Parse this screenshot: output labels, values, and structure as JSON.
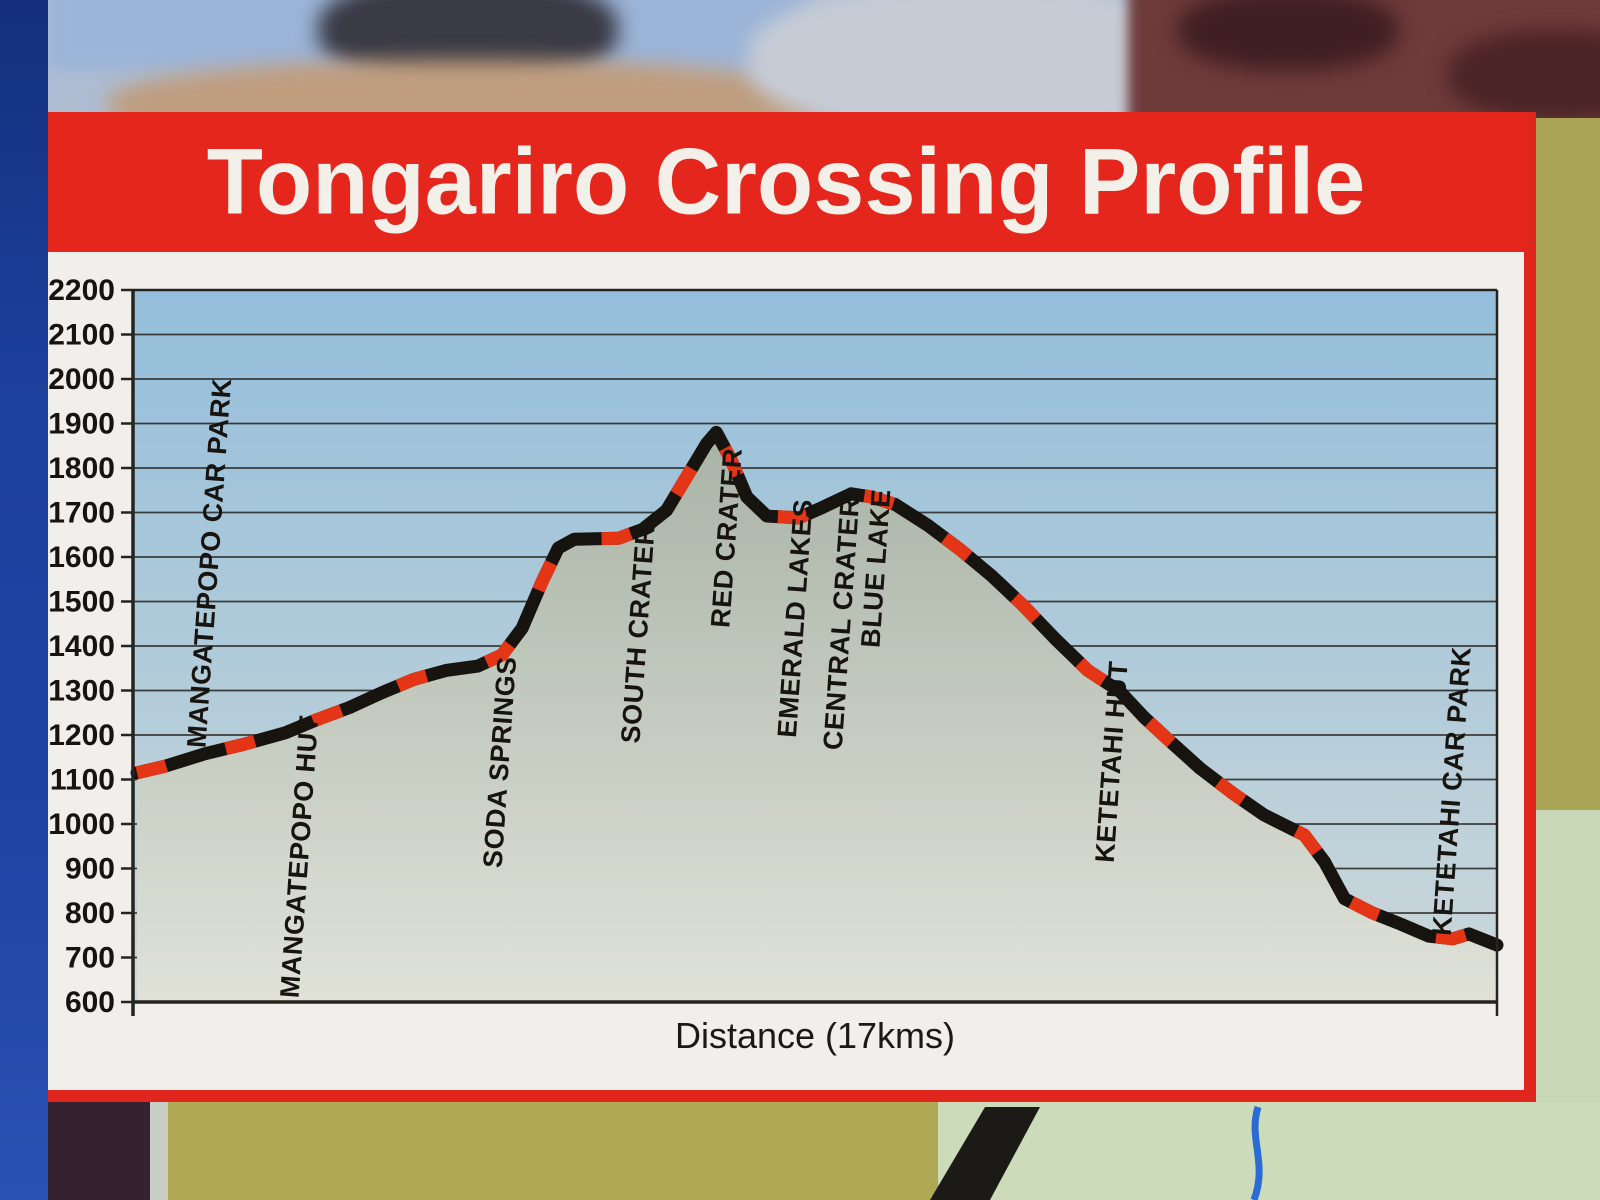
{
  "sign": {
    "title": "Tongariro Crossing Profile"
  },
  "chart_data": {
    "type": "line",
    "title": "Tongariro Crossing Profile",
    "xlabel": "Distance (17kms)",
    "ylabel": "",
    "x_unit": "km",
    "x_range": [
      0,
      17
    ],
    "ylim": [
      600,
      2200
    ],
    "y_ticks": [
      2200,
      2100,
      2000,
      1900,
      1800,
      1700,
      1600,
      1500,
      1400,
      1300,
      1200,
      1100,
      1000,
      900,
      800,
      700,
      600
    ],
    "grid": "horizontal",
    "legend_position": "none",
    "line_style": "thick black line with red dash segments",
    "series": [
      {
        "name": "elevation_profile_m",
        "points": [
          [
            0.05,
            1115
          ],
          [
            0.4,
            1130
          ],
          [
            0.9,
            1158
          ],
          [
            1.4,
            1180
          ],
          [
            1.9,
            1205
          ],
          [
            2.3,
            1235
          ],
          [
            2.7,
            1262
          ],
          [
            3.1,
            1295
          ],
          [
            3.5,
            1325
          ],
          [
            3.9,
            1345
          ],
          [
            4.3,
            1355
          ],
          [
            4.6,
            1380
          ],
          [
            4.85,
            1440
          ],
          [
            5.1,
            1545
          ],
          [
            5.3,
            1620
          ],
          [
            5.5,
            1640
          ],
          [
            6.05,
            1642
          ],
          [
            6.35,
            1662
          ],
          [
            6.65,
            1705
          ],
          [
            6.9,
            1780
          ],
          [
            7.15,
            1855
          ],
          [
            7.27,
            1880
          ],
          [
            7.45,
            1820
          ],
          [
            7.65,
            1735
          ],
          [
            7.9,
            1692
          ],
          [
            8.3,
            1688
          ],
          [
            8.6,
            1712
          ],
          [
            8.95,
            1742
          ],
          [
            9.2,
            1735
          ],
          [
            9.5,
            1718
          ],
          [
            9.9,
            1672
          ],
          [
            10.3,
            1618
          ],
          [
            10.7,
            1558
          ],
          [
            11.1,
            1490
          ],
          [
            11.5,
            1415
          ],
          [
            11.9,
            1345
          ],
          [
            12.3,
            1298
          ],
          [
            12.6,
            1240
          ],
          [
            12.9,
            1190
          ],
          [
            13.3,
            1125
          ],
          [
            13.7,
            1070
          ],
          [
            14.1,
            1020
          ],
          [
            14.6,
            975
          ],
          [
            14.85,
            915
          ],
          [
            15.1,
            832
          ],
          [
            15.45,
            800
          ],
          [
            15.8,
            775
          ],
          [
            16.15,
            748
          ],
          [
            16.45,
            742
          ],
          [
            16.65,
            753
          ],
          [
            17.0,
            728
          ]
        ]
      }
    ],
    "waypoints": [
      {
        "label": "MANGATEPOPO CAR PARK",
        "km": 0.74,
        "label_base_elev": 1170
      },
      {
        "label": "MANGATEPOPO HUT",
        "km": 1.9,
        "label_base_elev": 608
      },
      {
        "label": "SODA SPRINGS",
        "km": 4.43,
        "label_base_elev": 900
      },
      {
        "label": "SOUTH CRATER",
        "km": 6.15,
        "label_base_elev": 1180
      },
      {
        "label": "RED CRATER",
        "km": 7.27,
        "label_base_elev": 1440
      },
      {
        "label": "EMERALD LAKES",
        "km": 8.1,
        "label_base_elev": 1193
      },
      {
        "label": "CENTRAL CRATER",
        "km": 8.67,
        "label_base_elev": 1165
      },
      {
        "label": "BLUE LAKE",
        "km": 9.14,
        "label_base_elev": 1395
      },
      {
        "label": "KETETAHI HUT",
        "km": 12.06,
        "label_base_elev": 912
      },
      {
        "label": "KETETAHI CAR PARK",
        "km": 16.26,
        "label_base_elev": 748
      }
    ]
  },
  "colors": {
    "banner_red": "#e4261c",
    "border_red": "#e0261d",
    "title_white": "#f3f0e9",
    "line_black": "#17130e",
    "dash_red": "#e53517",
    "sky_top": "#94bedb",
    "sky_bottom": "#cdd8da",
    "land_top": "#a9b3a6",
    "land_bottom": "#e0e2d8",
    "grid_black": "#26241f",
    "panel_white": "#f0efeb",
    "frame_blue": "#1e44a4",
    "map_olive": "#b0a855",
    "map_pale_green": "#ccdcba",
    "map_road_black": "#1c1a17",
    "map_river_blue": "#2b6bd4",
    "map_maroon": "#342230"
  }
}
